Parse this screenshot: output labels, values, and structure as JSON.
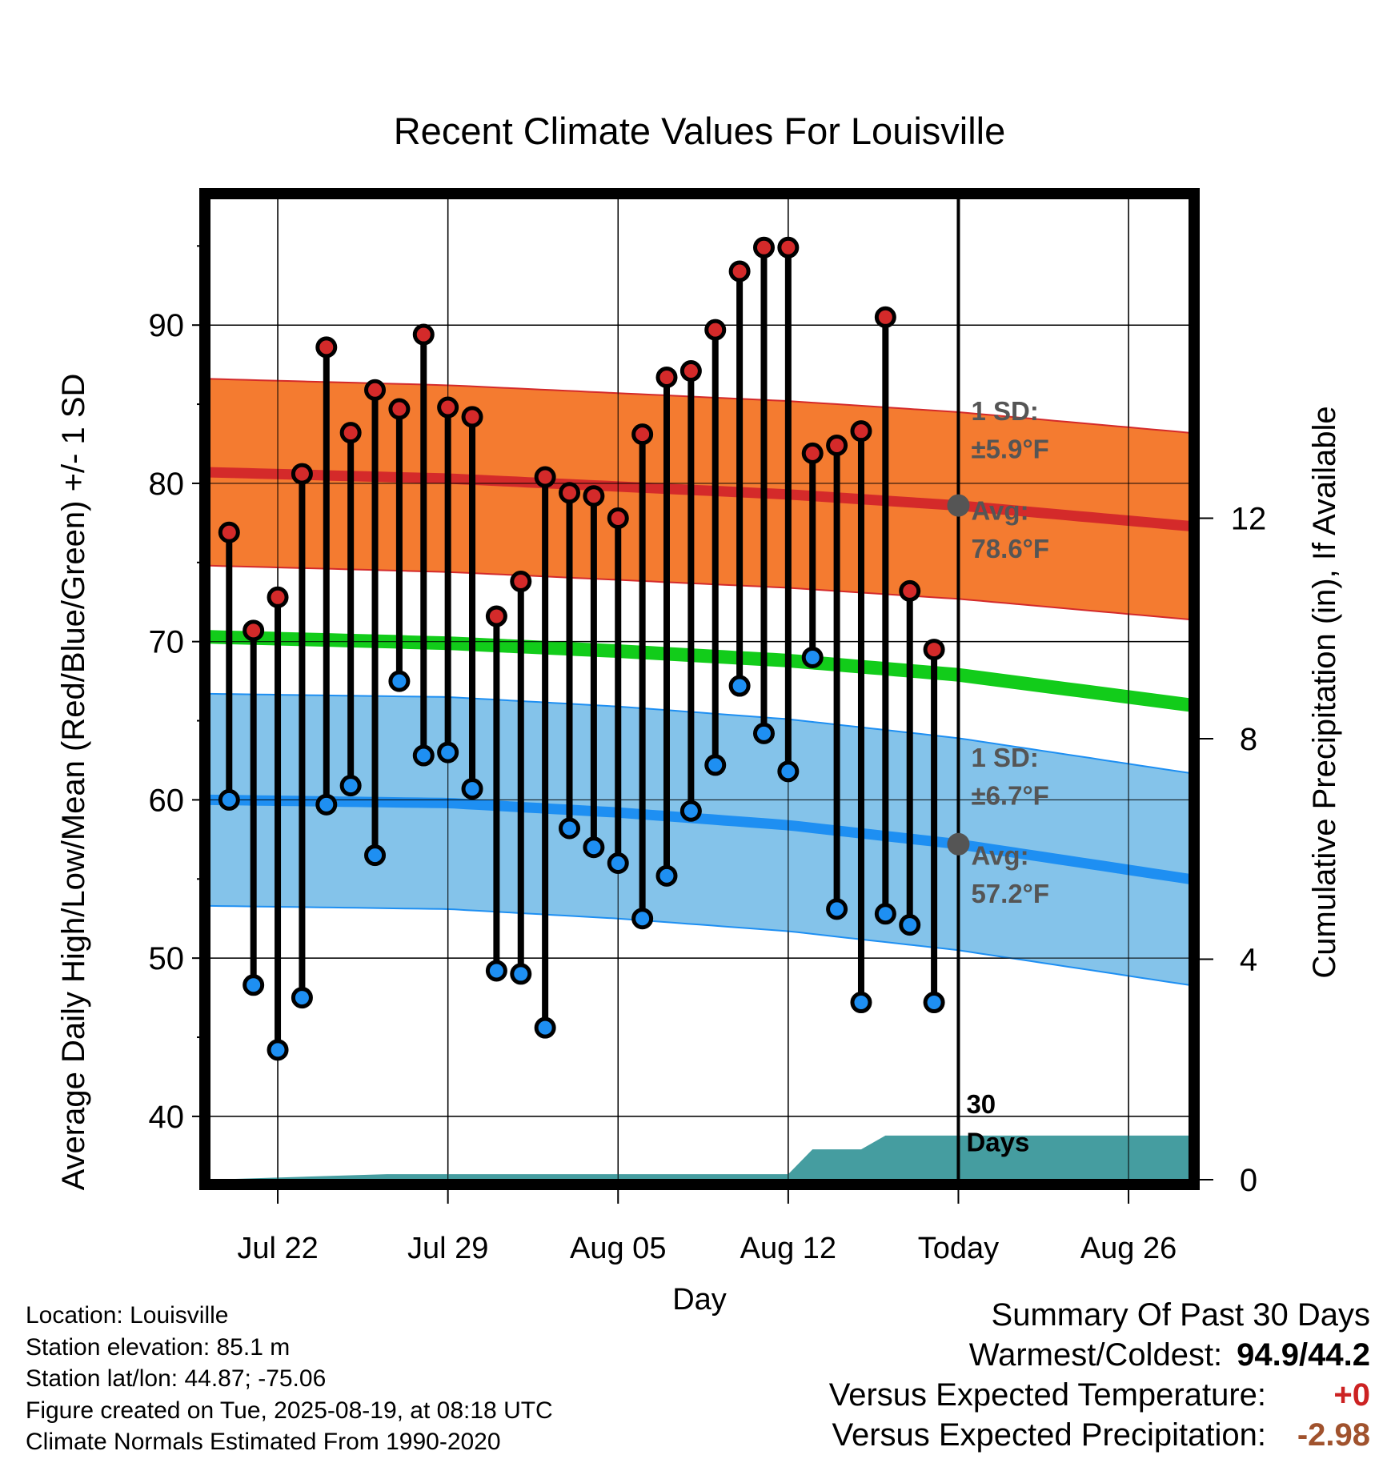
{
  "chart_data": {
    "type": "line",
    "title": "Recent Climate Values For Louisville",
    "xlabel": "Day",
    "ylabel": "Average Daily High/Low/Mean (Red/Blue/Green) +/- 1 SD",
    "y2label": "Cumulative Precipitation (in), If Available",
    "x_tick_labels": [
      "Jul 22",
      "Jul 29",
      "Aug 05",
      "Aug 12",
      "Today",
      "Aug 26"
    ],
    "x_range_day_offset": [
      -30.8,
      9.5
    ],
    "x_tick_day_offsets": [
      -28,
      -21,
      -14,
      -7,
      0,
      7
    ],
    "ylim": [
      36,
      98
    ],
    "y_ticks": [
      40,
      50,
      60,
      70,
      80,
      90
    ],
    "y2lim": [
      0,
      17.8
    ],
    "y2_ticks": [
      0,
      4,
      8,
      12
    ],
    "grid": true,
    "today_marker_label": "30 Days",
    "high_obs": [
      76.9,
      70.7,
      72.8,
      80.6,
      88.6,
      83.2,
      85.9,
      84.7,
      89.4,
      84.8,
      84.2,
      71.6,
      73.8,
      80.4,
      79.4,
      79.2,
      77.8,
      83.1,
      86.7,
      87.1,
      89.7,
      93.4,
      94.9,
      94.9,
      81.9,
      82.4,
      83.3,
      90.5,
      73.2,
      69.5
    ],
    "low_obs": [
      60.0,
      48.3,
      44.2,
      47.5,
      59.7,
      60.9,
      56.5,
      67.5,
      62.8,
      63.0,
      60.7,
      49.2,
      49.0,
      45.6,
      58.2,
      57.0,
      56.0,
      52.5,
      55.2,
      59.3,
      62.2,
      67.2,
      64.2,
      61.8,
      69.0,
      53.1,
      47.2,
      52.8,
      52.1,
      47.2
    ],
    "obs_day_offsets": [
      -30,
      -29,
      -28,
      -27,
      -26,
      -25,
      -24,
      -23,
      -22,
      -21,
      -20,
      -19,
      -18,
      -17,
      -16,
      -15,
      -14,
      -13,
      -12,
      -11,
      -10,
      -9,
      -8,
      -7,
      -6,
      -5,
      -4,
      -3,
      -2,
      -1
    ],
    "normal_day_offsets": [
      -30.8,
      -21,
      -14,
      -7,
      0,
      9.5
    ],
    "normal_high": [
      80.7,
      80.3,
      79.8,
      79.3,
      78.6,
      77.3
    ],
    "normal_mean": [
      70.3,
      69.9,
      69.4,
      68.8,
      67.9,
      66.0
    ],
    "normal_low": [
      60.0,
      59.8,
      59.2,
      58.4,
      57.2,
      55.0
    ],
    "high_sd": 5.9,
    "low_sd": 6.7,
    "high_band_note": "1 SD:",
    "high_sd_label": "±5.9°F",
    "high_avg_note": "Avg:",
    "high_avg_label": "78.6°F",
    "low_band_note": "1 SD:",
    "low_sd_label": "±6.7°F",
    "low_avg_note": "Avg:",
    "low_avg_label": "57.2°F",
    "precip_day_offsets": [
      -30.8,
      -23.5,
      -7,
      -6,
      -4,
      -3,
      9.5
    ],
    "precip_cum": [
      0,
      0.1,
      0.1,
      0.55,
      0.55,
      0.8,
      0.8
    ],
    "colors": {
      "high_band": "#f47b30",
      "high_normal": "#d42a2a",
      "low_band": "#84c3ea",
      "low_normal": "#1e8ff2",
      "mean_normal": "#12cc1a",
      "precip": "#459da0",
      "high_marker": "#d42a2a",
      "low_marker": "#1e8ff2",
      "today_marker": "#555555",
      "annotation": "#555555"
    }
  },
  "footer": {
    "location": "Location: Louisville",
    "elevation": "Station elevation: 85.1 m",
    "latlon": "Station lat/lon: 44.87; -75.06",
    "created": "Figure created on Tue, 2025-08-19, at 08:18 UTC",
    "normals": "Climate Normals Estimated From 1990-2020"
  },
  "summary": {
    "heading": "Summary Of Past 30 Days",
    "warmest_label": "Warmest/Coldest:",
    "warmest_value": "94.9/44.2",
    "temp_label": "Versus Expected Temperature:",
    "temp_value": "+0",
    "temp_color": "#cc2222",
    "precip_label": "Versus Expected Precipitation:",
    "precip_value": "-2.98",
    "precip_color": "#a0522d"
  }
}
